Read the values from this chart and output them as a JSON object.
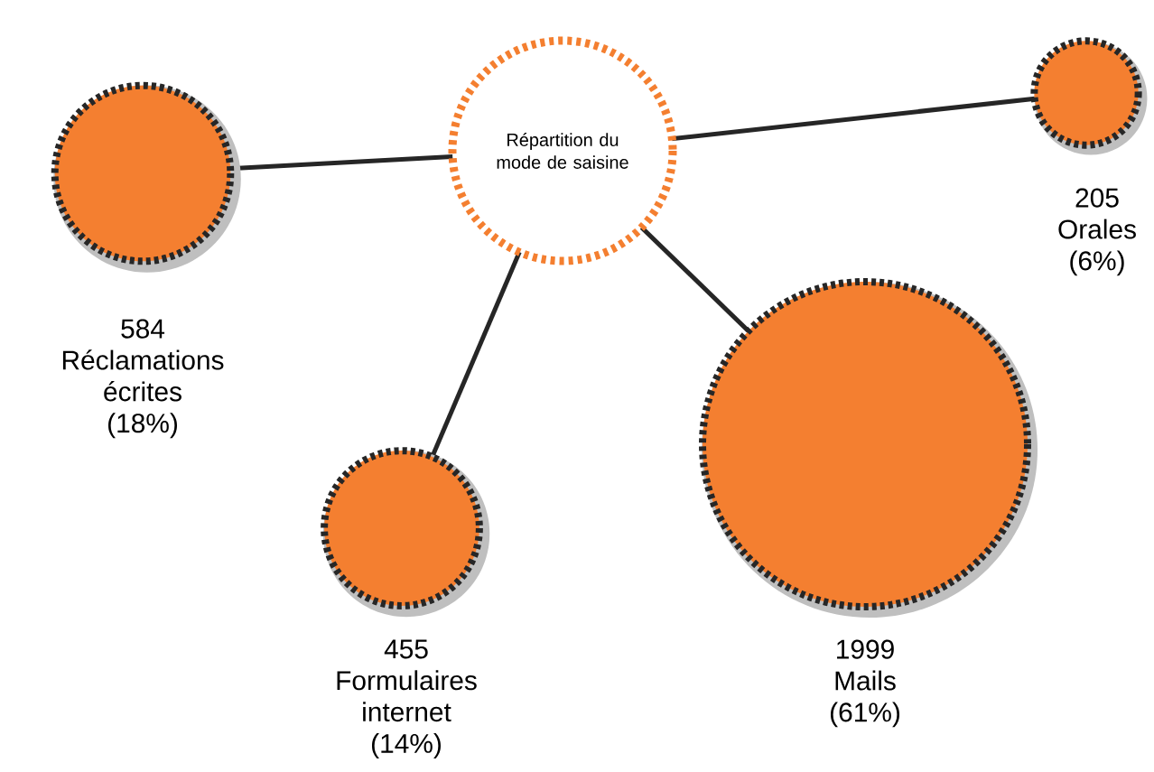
{
  "chart_data": {
    "type": "other",
    "title": "Répartition du mode de saisine",
    "categories": [
      "Réclamations écrites",
      "Formulaires internet",
      "Mails",
      "Orales"
    ],
    "series": [
      {
        "color": "#f47f30",
        "values": [
          584,
          455,
          1999,
          205
        ],
        "value_labels": [
          "584",
          "455",
          "1999",
          "205"
        ]
      },
      {
        "values": [
          18,
          14,
          61,
          6
        ],
        "value_labels": [
          "(18%)",
          "(14%)",
          "(61%)",
          "(6%)"
        ]
      }
    ]
  }
}
